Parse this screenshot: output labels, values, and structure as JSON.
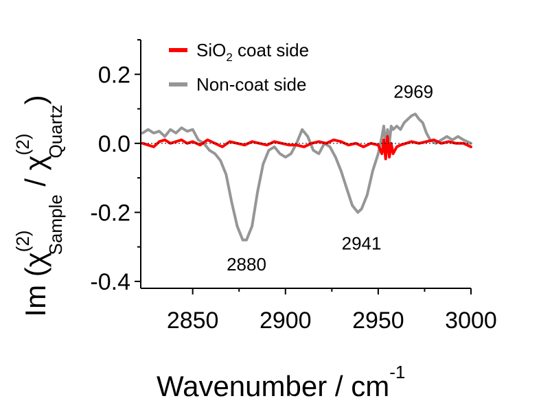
{
  "chart_data": {
    "type": "line",
    "xlabel": "Wavenumber / cm",
    "xlabel_sup": "-1",
    "ylabel": {
      "prefix": "Im (",
      "chi": "χ",
      "num_sup": "(2)",
      "num_sub": "Sample",
      "slash": " / ",
      "den_sup": "(2)",
      "den_sub": "Quartz",
      "suffix": ")"
    },
    "xlim": [
      2822,
      3000
    ],
    "ylim": [
      -0.42,
      0.3
    ],
    "xticks": [
      2850,
      2900,
      2950,
      3000
    ],
    "xtick_labels": [
      "2850",
      "2900",
      "2950",
      "3000"
    ],
    "yticks": [
      0.2,
      0.0,
      -0.2,
      -0.4
    ],
    "ytick_labels": [
      "0.2",
      "0.0",
      "-0.2",
      "-0.4"
    ],
    "legend_position": "top-left",
    "legend": [
      {
        "label_main": "SiO",
        "label_sub": "2",
        "label_rest": " coat side",
        "color": "#ff0000"
      },
      {
        "label_main": "Non-coat side",
        "label_sub": "",
        "label_rest": "",
        "color": "#969696"
      }
    ],
    "series": [
      {
        "name": "Non-coat side",
        "color": "#969696",
        "x": [
          2823,
          2826,
          2829,
          2832,
          2835,
          2838,
          2841,
          2844,
          2847,
          2850,
          2853,
          2856,
          2859,
          2862,
          2865,
          2868,
          2871,
          2874,
          2877,
          2879,
          2882,
          2885,
          2888,
          2891,
          2894,
          2897,
          2900,
          2903,
          2906,
          2909,
          2912,
          2915,
          2918,
          2921,
          2924,
          2927,
          2930,
          2933,
          2936,
          2939,
          2941,
          2944,
          2947,
          2950,
          2952,
          2953,
          2954,
          2955,
          2956,
          2957,
          2958,
          2960,
          2962,
          2964,
          2966,
          2968,
          2970,
          2972,
          2974,
          2976,
          2978,
          2981,
          2984,
          2987,
          2990,
          2993,
          2996,
          3000
        ],
        "y": [
          0.03,
          0.04,
          0.03,
          0.035,
          0.02,
          0.04,
          0.03,
          0.045,
          0.035,
          0.04,
          0.01,
          0.0,
          -0.02,
          -0.03,
          -0.05,
          -0.09,
          -0.17,
          -0.24,
          -0.28,
          -0.28,
          -0.24,
          -0.14,
          -0.06,
          -0.02,
          -0.01,
          -0.03,
          -0.04,
          -0.03,
          0.0,
          0.04,
          0.02,
          -0.02,
          -0.03,
          0.0,
          -0.01,
          -0.04,
          -0.08,
          -0.13,
          -0.18,
          -0.2,
          -0.19,
          -0.15,
          -0.08,
          -0.03,
          0.02,
          0.05,
          -0.01,
          0.04,
          0.0,
          0.05,
          0.04,
          0.05,
          0.04,
          0.06,
          0.07,
          0.08,
          0.085,
          0.07,
          0.06,
          0.03,
          0.01,
          0.0,
          0.01,
          0.02,
          0.01,
          0.02,
          0.01,
          0.0
        ]
      },
      {
        "name": "SiO2 coat side",
        "color": "#ff0000",
        "x": [
          2823,
          2826,
          2829,
          2832,
          2835,
          2838,
          2841,
          2844,
          2847,
          2850,
          2854,
          2858,
          2862,
          2866,
          2870,
          2874,
          2878,
          2882,
          2886,
          2890,
          2894,
          2898,
          2902,
          2906,
          2910,
          2914,
          2918,
          2922,
          2926,
          2930,
          2934,
          2938,
          2942,
          2946,
          2950,
          2952,
          2953,
          2954,
          2955,
          2956,
          2957,
          2958,
          2960,
          2962,
          2965,
          2968,
          2972,
          2976,
          2980,
          2984,
          2988,
          2992,
          2996,
          3000
        ],
        "y": [
          0.0,
          -0.005,
          -0.01,
          0.005,
          0.01,
          0.0,
          0.005,
          0.01,
          0.0,
          0.005,
          -0.005,
          0.01,
          0.0,
          -0.01,
          0.005,
          0.0,
          -0.005,
          0.005,
          0.0,
          -0.005,
          0.005,
          0.0,
          -0.005,
          -0.005,
          -0.01,
          0.0,
          0.005,
          0.0,
          0.01,
          0.005,
          -0.005,
          0.0,
          -0.01,
          0.0,
          -0.005,
          -0.03,
          0.01,
          -0.045,
          0.02,
          -0.04,
          0.0,
          -0.03,
          -0.01,
          -0.005,
          0.0,
          0.005,
          0.0,
          0.005,
          0.01,
          0.0,
          0.005,
          0.0,
          0.0,
          -0.01
        ]
      }
    ],
    "annotations": [
      {
        "text": "2880",
        "x": 2879,
        "y": -0.35
      },
      {
        "text": "2941",
        "x": 2941,
        "y": -0.29
      },
      {
        "text": "2969",
        "x": 2969,
        "y": 0.15
      }
    ]
  }
}
